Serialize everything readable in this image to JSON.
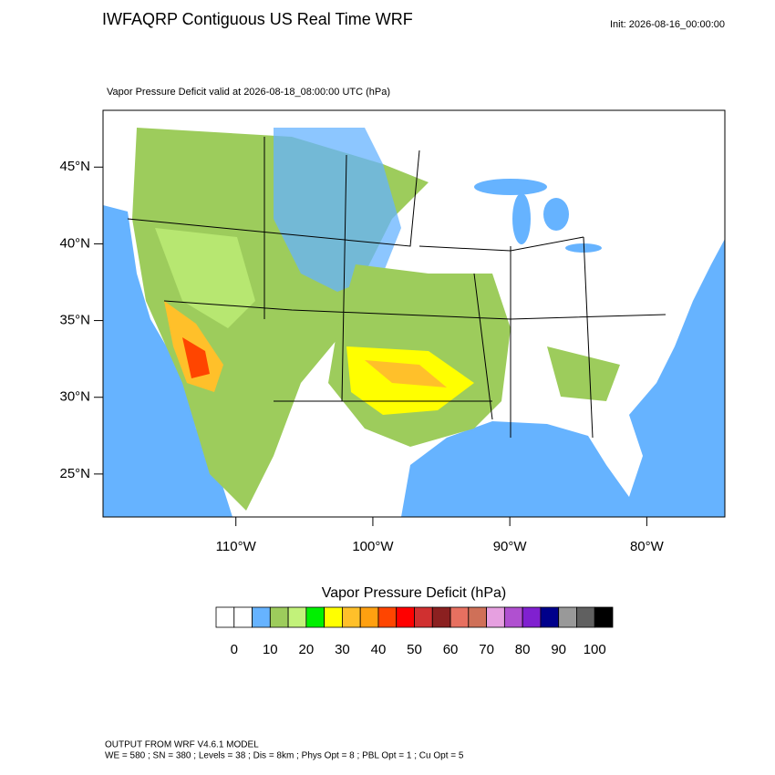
{
  "header": {
    "title": "IWFAQRP Contiguous US Real Time WRF",
    "init": "Init: 2026-08-16_00:00:00"
  },
  "map": {
    "subtitle": "Vapor Pressure Deficit valid at 2026-08-18_08:00:00 UTC   (hPa)",
    "xlim": [
      -119.7,
      -74.3
    ],
    "ylim": [
      22.2,
      48.7
    ],
    "xticks": [
      {
        "value": -110,
        "label": "110°W"
      },
      {
        "value": -100,
        "label": "100°W"
      },
      {
        "value": -90,
        "label": "90°W"
      },
      {
        "value": -80,
        "label": "80°W"
      }
    ],
    "yticks": [
      {
        "value": 25,
        "label": "25°N"
      },
      {
        "value": 30,
        "label": "30°N"
      },
      {
        "value": 35,
        "label": "35°N"
      },
      {
        "value": 40,
        "label": "40°N"
      },
      {
        "value": 45,
        "label": "45°N"
      }
    ]
  },
  "colorbar": {
    "title": "Vapor Pressure Deficit  (hPa)",
    "clim": [
      -5,
      105
    ],
    "colors": [
      "#ffffff",
      "#ffffff",
      "#66b3ff",
      "#9dcc5c",
      "#c2f27a",
      "#00f000",
      "#ffff00",
      "#ffc02a",
      "#ffa010",
      "#ff4500",
      "#ff0000",
      "#d03030",
      "#8b2020",
      "#e77060",
      "#cf7058",
      "#e6a0e0",
      "#b050d0",
      "#8020d0",
      "#00008b",
      "#999999",
      "#606060",
      "#000000"
    ],
    "ticks": [
      0,
      10,
      20,
      30,
      40,
      50,
      60,
      70,
      80,
      90,
      100
    ]
  },
  "footer": {
    "line1": "OUTPUT FROM WRF V4.6.1 MODEL",
    "line2": "WE = 580 ; SN = 380 ; Levels = 38 ; Dis = 8km ; Phys Opt = 8 ; PBL Opt = 1 ; Cu Opt = 5"
  }
}
